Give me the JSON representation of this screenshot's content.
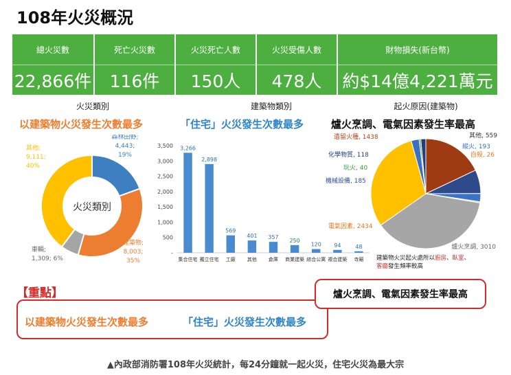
{
  "title": "108年火災概況",
  "stats": [
    {
      "label": "總火災數",
      "value": "22,866件"
    },
    {
      "label": "死亡火災數",
      "value": "116件"
    },
    {
      "label": "火災死亡人數",
      "value": "150人"
    },
    {
      "label": "火災受傷人數",
      "value": "478人"
    },
    {
      "label": "財物損失(新台幣)",
      "value": "約$14億4,221萬元"
    }
  ],
  "panels": {
    "category_head": "火災類別",
    "category_big": "以建築物火災發生次數最多",
    "building_head": "建築物類別",
    "building_big": "「住宅」火災發生次數最多",
    "cause_head": "起火原因(建築物)",
    "cause_big": "爐火烹調、電氣因素發生率最高"
  },
  "key": {
    "title": "【重點】",
    "point1": "以建築物火災發生次數最多",
    "point2": "「住宅」火災發生次數最多",
    "point3": "爐火烹調、電氣因素發生率最高"
  },
  "caption": "▲內政部消防署108年火災統計，每24分鐘就一起火災，住宅火災為最大宗",
  "chart_data": [
    {
      "type": "pie",
      "center_label": "火災類別",
      "labels": [
        "森林田野",
        "建築物",
        "車輛",
        "其他"
      ],
      "label_lines": [
        [
          "森林田野;",
          "4,443;",
          "19%"
        ],
        [
          "建築物;",
          "8,003;",
          "35%"
        ],
        [
          "車輛;",
          "1,309; 6%"
        ],
        [
          "其他;",
          "9,111;",
          "40%"
        ]
      ],
      "values": [
        4443,
        8003,
        1309,
        9111
      ],
      "percents": [
        19,
        35,
        6,
        40
      ],
      "colors": [
        "#3e7fc1",
        "#ed7d31",
        "#a5a5a5",
        "#ffc000"
      ]
    },
    {
      "type": "bar",
      "categories": [
        "集合住宅",
        "獨立住宅",
        "工廠",
        "其他",
        "倉庫",
        "商業建築",
        "綜合公寓",
        "複合建築",
        "寺廟"
      ],
      "values": [
        3266,
        2898,
        569,
        401,
        357,
        250,
        120,
        94,
        48
      ],
      "value_labels": [
        "3,266",
        "2,898",
        "569",
        "401",
        "357",
        "250",
        "120",
        "94",
        "48"
      ],
      "ylim": [
        0,
        3500
      ],
      "yticks": [
        0,
        500,
        1000,
        1500,
        2000,
        2500,
        3000,
        3500
      ],
      "ytick_labels": [
        "-",
        "500",
        "1,000",
        "1,500",
        "2,000",
        "2,500",
        "3,000",
        "3,500"
      ],
      "color": "#4a8bd0"
    },
    {
      "type": "pie",
      "labels": [
        "遺留火種",
        "其他",
        "縱火",
        "自殺",
        "爐火烹調",
        "電氣因素",
        "機械設備",
        "玩火",
        "化學物質"
      ],
      "values": [
        1438,
        559,
        193,
        26,
        3010,
        2434,
        185,
        40,
        118
      ],
      "colors": [
        "#9e3b12",
        "#2e4a8a",
        "#3a73c4",
        "#e97f2a",
        "#a6a6a6",
        "#ffc000",
        "#3b6fc0",
        "#4ea84e",
        "#223e7a"
      ],
      "label_colors": [
        "#b5431a",
        "#333333",
        "#2f6fd0",
        "#e07a1f",
        "#666666",
        "#e07a1f",
        "#2f4f9e",
        "#3a9a3a",
        "#1f3f7a"
      ],
      "note": [
        "建築物火災起火處所以廚房、臥室、",
        "客廳發生頻率較高"
      ],
      "note_highlights": [
        "廚房",
        "臥室",
        "客廳"
      ]
    }
  ]
}
